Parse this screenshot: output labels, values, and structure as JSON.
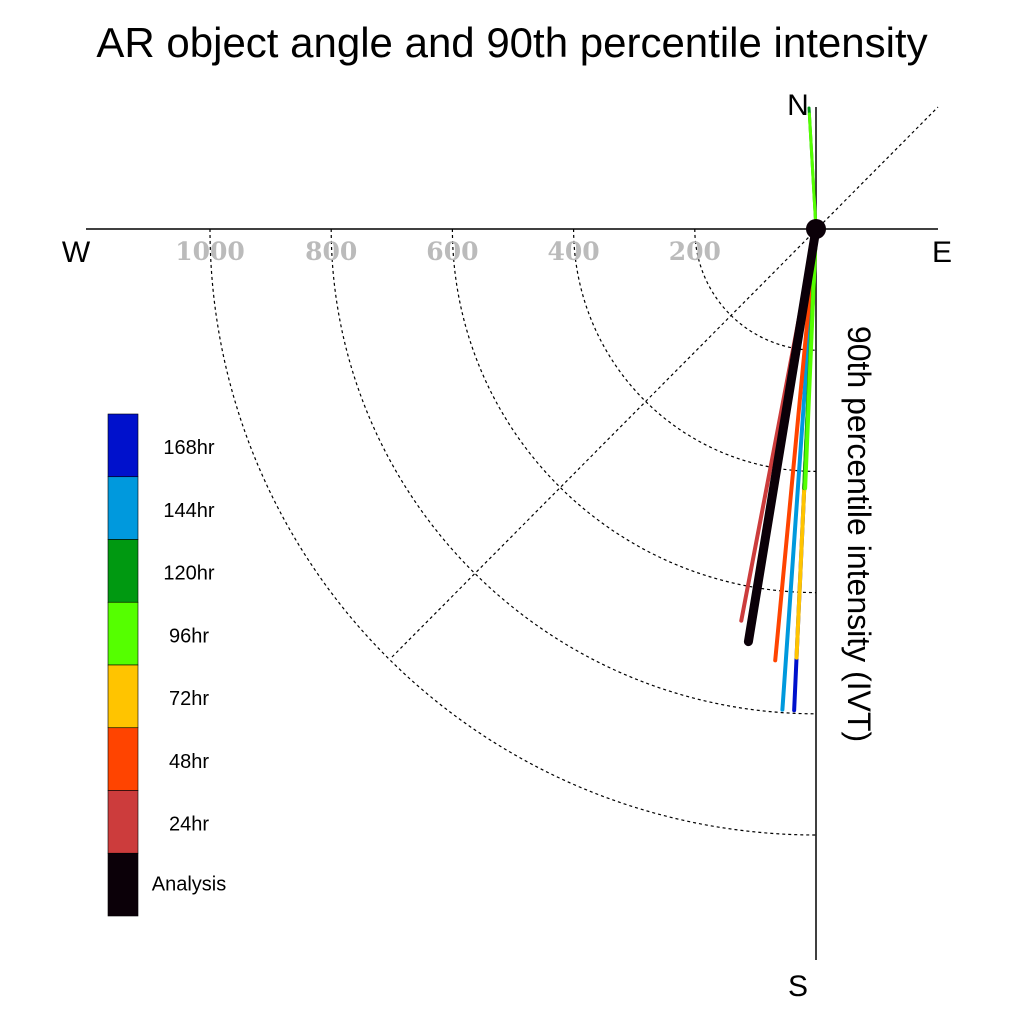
{
  "chart_data": {
    "type": "polar-line",
    "title": "AR object angle and 90th percentile intensity",
    "radial_label": "90th percentile intensity (IVT)",
    "compass": {
      "n": "N",
      "e": "E",
      "s": "S",
      "w": "W"
    },
    "radial_ticks": [
      200,
      400,
      600,
      800,
      1000
    ],
    "series": [
      {
        "name": "168hr",
        "color": "#0011cc",
        "angle_deg": 2.6,
        "intensity": 795
      },
      {
        "name": "144hr",
        "color": "#0099dd",
        "angle_deg": 4.0,
        "intensity": 795
      },
      {
        "name": "120hr",
        "color": "#009911",
        "angle_deg": 2.6,
        "intensity": 428
      },
      {
        "name": "96hr",
        "color": "#55ff00",
        "angle_deg": 2.4,
        "intensity": 428
      },
      {
        "name": "72hr",
        "color": "#ffc400",
        "angle_deg": 2.6,
        "intensity": 708
      },
      {
        "name": "48hr",
        "color": "#ff4400",
        "angle_deg": 5.4,
        "intensity": 715
      },
      {
        "name": "24hr",
        "color": "#cc3c3c",
        "angle_deg": 10.8,
        "intensity": 658
      },
      {
        "name": "Analysis",
        "color": "#0b0008",
        "angle_deg": 9.3,
        "intensity": 690
      }
    ],
    "north_tails": [
      {
        "color": "#009911",
        "intensity": 200
      },
      {
        "color": "#55ff00",
        "intensity": 190
      }
    ],
    "legend_position": "left"
  }
}
